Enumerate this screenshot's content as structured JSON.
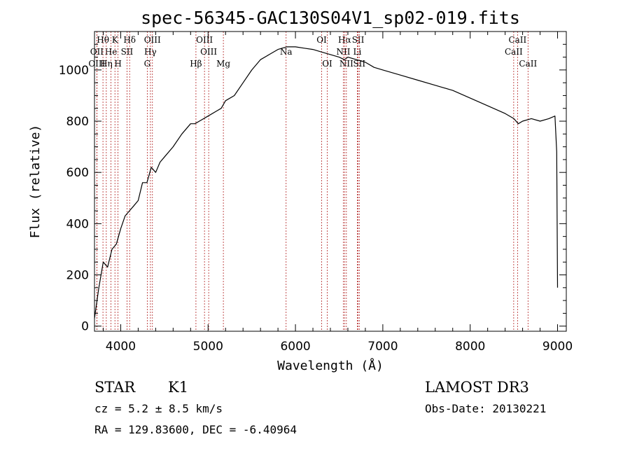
{
  "chart_data": {
    "type": "line",
    "title": "spec-56345-GAC130S04V1_sp02-019.fits",
    "xlabel": "Wavelength (Å)",
    "ylabel": "Flux (relative)",
    "xlim": [
      3700,
      9100
    ],
    "ylim": [
      -20,
      1150
    ],
    "xticks": [
      4000,
      5000,
      6000,
      7000,
      8000,
      9000
    ],
    "yticks": [
      0,
      200,
      400,
      600,
      800,
      1000
    ],
    "series": [
      {
        "name": "flux",
        "x": [
          3700,
          3750,
          3800,
          3850,
          3900,
          3950,
          4000,
          4050,
          4100,
          4150,
          4200,
          4250,
          4300,
          4350,
          4400,
          4450,
          4500,
          4600,
          4700,
          4800,
          4850,
          4900,
          5000,
          5100,
          5150,
          5200,
          5300,
          5400,
          5500,
          5600,
          5700,
          5800,
          5900,
          6000,
          6100,
          6200,
          6300,
          6400,
          6500,
          6560,
          6600,
          6700,
          6800,
          6900,
          7000,
          7200,
          7400,
          7600,
          7800,
          8000,
          8200,
          8400,
          8500,
          8550,
          8600,
          8700,
          8800,
          8900,
          8970,
          8990,
          9000
        ],
        "y": [
          30,
          150,
          250,
          230,
          300,
          320,
          380,
          430,
          450,
          470,
          490,
          560,
          560,
          620,
          600,
          640,
          660,
          700,
          750,
          790,
          790,
          800,
          820,
          840,
          850,
          880,
          900,
          950,
          1000,
          1040,
          1060,
          1080,
          1090,
          1090,
          1085,
          1080,
          1070,
          1060,
          1050,
          1040,
          1050,
          1040,
          1030,
          1010,
          1000,
          980,
          960,
          940,
          920,
          890,
          860,
          830,
          810,
          790,
          800,
          810,
          800,
          810,
          820,
          680,
          150
        ]
      }
    ],
    "lines": [
      {
        "label": "Hθ",
        "x": 3797,
        "row": 0
      },
      {
        "label": "OII",
        "x": 3727,
        "row": 1
      },
      {
        "label": "OIII",
        "x": 3727,
        "row": 2
      },
      {
        "label": "He",
        "x": 3889,
        "row": 1
      },
      {
        "label": "Hη",
        "x": 3835,
        "row": 2
      },
      {
        "label": "K",
        "x": 3934,
        "row": 0
      },
      {
        "label": "H",
        "x": 3969,
        "row": 2
      },
      {
        "label": "SII",
        "x": 4072,
        "row": 1
      },
      {
        "label": "Hδ",
        "x": 4102,
        "row": 0
      },
      {
        "label": "OIII",
        "x": 4363,
        "row": 0
      },
      {
        "label": "Hγ",
        "x": 4340,
        "row": 1
      },
      {
        "label": "G",
        "x": 4304,
        "row": 2
      },
      {
        "label": "OIII",
        "x": 4959,
        "row": 0
      },
      {
        "label": "OIII",
        "x": 5007,
        "row": 1
      },
      {
        "label": "Hβ",
        "x": 4861,
        "row": 2
      },
      {
        "label": "Mg",
        "x": 5175,
        "row": 2
      },
      {
        "label": "Na",
        "x": 5893,
        "row": 1
      },
      {
        "label": "OI",
        "x": 6300,
        "row": 0
      },
      {
        "label": "OI",
        "x": 6364,
        "row": 2
      },
      {
        "label": "Hα",
        "x": 6563,
        "row": 0
      },
      {
        "label": "NII",
        "x": 6548,
        "row": 1
      },
      {
        "label": "NII",
        "x": 6583,
        "row": 2
      },
      {
        "label": "SII",
        "x": 6717,
        "row": 0
      },
      {
        "label": "Li",
        "x": 6708,
        "row": 1
      },
      {
        "label": "SII",
        "x": 6731,
        "row": 2
      },
      {
        "label": "CaII",
        "x": 8542,
        "row": 0
      },
      {
        "label": "CaII",
        "x": 8498,
        "row": 1
      },
      {
        "label": "CaII",
        "x": 8662,
        "row": 2
      }
    ]
  },
  "info": {
    "object_class": "STAR",
    "subclass": "K1",
    "cz": "cz = 5.2 ± 8.5 km/s",
    "coords": "RA = 129.83600, DEC =  -6.40964",
    "survey": "LAMOST DR3",
    "obs_date": "Obs-Date: 20130221"
  }
}
